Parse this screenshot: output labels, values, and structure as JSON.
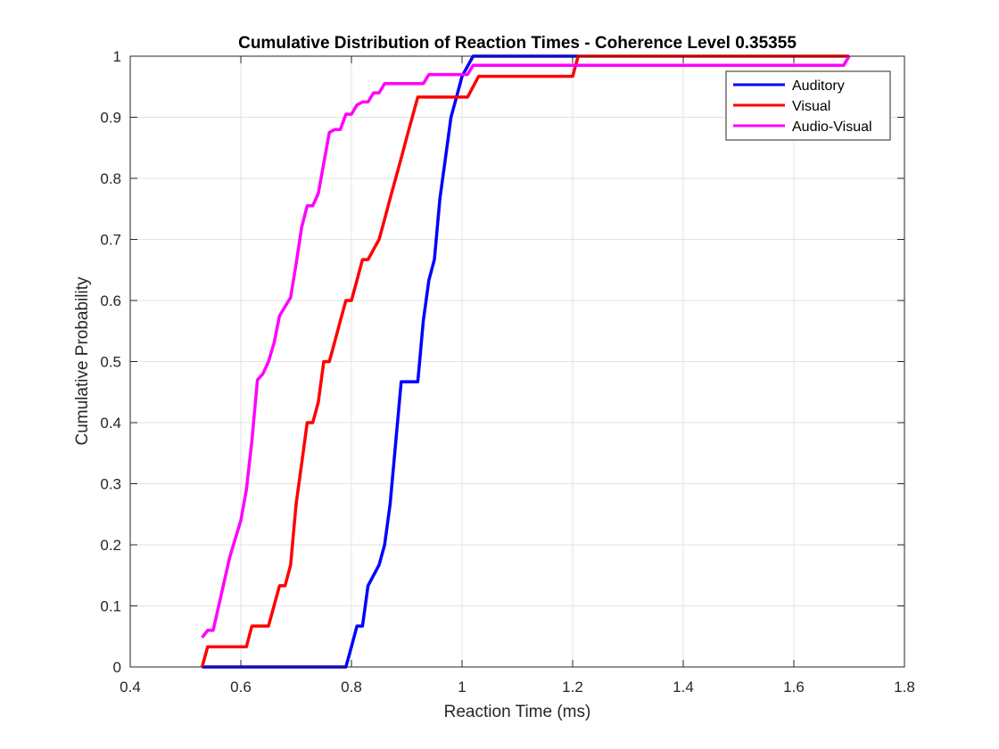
{
  "chart_data": {
    "type": "line",
    "title": "Cumulative Distribution of Reaction Times - Coherence Level 0.35355",
    "xlabel": "Reaction Time (ms)",
    "ylabel": "Cumulative Probability",
    "xlim": [
      0.4,
      1.8
    ],
    "ylim": [
      0,
      1
    ],
    "xticks": [
      "0.4",
      "0.6",
      "0.8",
      "1",
      "1.2",
      "1.4",
      "1.6",
      "1.8"
    ],
    "yticks": [
      "0",
      "0.1",
      "0.2",
      "0.3",
      "0.4",
      "0.5",
      "0.6",
      "0.7",
      "0.8",
      "0.9",
      "1"
    ],
    "grid": true,
    "legend_position": "top-right",
    "series": [
      {
        "name": "Auditory",
        "color": "#0000ff",
        "x": [
          0.53,
          0.79,
          0.8,
          0.81,
          0.82,
          0.83,
          0.85,
          0.86,
          0.87,
          0.88,
          0.89,
          0.92,
          0.93,
          0.94,
          0.95,
          0.96,
          0.97,
          0.98,
          0.99,
          1.0,
          1.02,
          1.21
        ],
        "y": [
          0,
          0,
          0.033,
          0.067,
          0.067,
          0.133,
          0.167,
          0.2,
          0.267,
          0.367,
          0.467,
          0.467,
          0.567,
          0.633,
          0.667,
          0.767,
          0.833,
          0.9,
          0.933,
          0.967,
          1.0,
          1.0
        ]
      },
      {
        "name": "Visual",
        "color": "#ff0000",
        "x": [
          0.53,
          0.54,
          0.55,
          0.61,
          0.62,
          0.64,
          0.65,
          0.66,
          0.67,
          0.68,
          0.69,
          0.7,
          0.71,
          0.72,
          0.73,
          0.74,
          0.75,
          0.76,
          0.77,
          0.78,
          0.79,
          0.8,
          0.81,
          0.82,
          0.83,
          0.85,
          0.86,
          0.87,
          0.88,
          0.89,
          0.9,
          0.91,
          0.92,
          0.93,
          0.94,
          0.95,
          0.96,
          1.01,
          1.02,
          1.03,
          1.04,
          1.05,
          1.19,
          1.2,
          1.21,
          1.7
        ],
        "y": [
          0,
          0.033,
          0.033,
          0.033,
          0.067,
          0.067,
          0.067,
          0.1,
          0.133,
          0.133,
          0.167,
          0.267,
          0.333,
          0.4,
          0.4,
          0.433,
          0.5,
          0.5,
          0.533,
          0.567,
          0.6,
          0.6,
          0.633,
          0.667,
          0.667,
          0.7,
          0.733,
          0.767,
          0.8,
          0.833,
          0.867,
          0.9,
          0.933,
          0.933,
          0.933,
          0.933,
          0.933,
          0.933,
          0.95,
          0.967,
          0.967,
          0.967,
          0.967,
          0.967,
          1.0,
          1.0
        ]
      },
      {
        "name": "Audio-Visual",
        "color": "#ff00ff",
        "x": [
          0.53,
          0.54,
          0.55,
          0.56,
          0.57,
          0.58,
          0.59,
          0.6,
          0.61,
          0.62,
          0.63,
          0.64,
          0.65,
          0.66,
          0.67,
          0.68,
          0.69,
          0.7,
          0.71,
          0.72,
          0.73,
          0.74,
          0.75,
          0.76,
          0.77,
          0.78,
          0.79,
          0.8,
          0.81,
          0.82,
          0.83,
          0.84,
          0.85,
          0.86,
          0.87,
          0.88,
          0.89,
          0.9,
          0.91,
          0.92,
          0.93,
          0.94,
          0.95,
          0.96,
          0.97,
          0.98,
          0.99,
          1.0,
          1.01,
          1.02,
          1.03,
          1.04,
          1.05,
          1.1,
          1.2,
          1.4,
          1.6,
          1.69,
          1.7
        ],
        "y": [
          0.048,
          0.06,
          0.06,
          0.1,
          0.14,
          0.18,
          0.21,
          0.24,
          0.29,
          0.37,
          0.47,
          0.48,
          0.5,
          0.53,
          0.575,
          0.59,
          0.605,
          0.66,
          0.72,
          0.755,
          0.755,
          0.775,
          0.825,
          0.875,
          0.88,
          0.88,
          0.905,
          0.905,
          0.92,
          0.925,
          0.925,
          0.94,
          0.94,
          0.955,
          0.955,
          0.955,
          0.955,
          0.955,
          0.955,
          0.955,
          0.955,
          0.97,
          0.97,
          0.97,
          0.97,
          0.97,
          0.97,
          0.97,
          0.97,
          0.985,
          0.985,
          0.985,
          0.985,
          0.985,
          0.985,
          0.985,
          0.985,
          0.985,
          1.0
        ]
      }
    ]
  }
}
